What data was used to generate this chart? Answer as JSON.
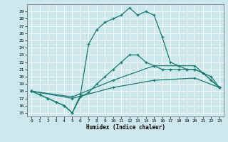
{
  "xlabel": "Humidex (Indice chaleur)",
  "xlim": [
    -0.5,
    23.5
  ],
  "ylim": [
    14.5,
    30.0
  ],
  "xticks": [
    0,
    1,
    2,
    3,
    4,
    5,
    6,
    7,
    8,
    9,
    10,
    11,
    12,
    13,
    14,
    15,
    16,
    17,
    18,
    19,
    20,
    21,
    22,
    23
  ],
  "yticks": [
    15,
    16,
    17,
    18,
    19,
    20,
    21,
    22,
    23,
    24,
    25,
    26,
    27,
    28,
    29
  ],
  "bg_color": "#cce8ec",
  "grid_color": "#b0d8dc",
  "line_color": "#1a7a6e",
  "curve_peak": {
    "x": [
      0,
      1,
      2,
      3,
      4,
      5,
      6,
      7,
      8,
      9,
      10,
      11,
      12,
      13,
      14,
      15,
      16,
      17,
      18,
      19,
      20,
      21,
      22,
      23
    ],
    "y": [
      18,
      17.5,
      17,
      16.5,
      16,
      15,
      17.5,
      24.5,
      26.5,
      27.5,
      28,
      28.5,
      29.5,
      28.5,
      29,
      28.5,
      25.5,
      22,
      21.5,
      21,
      21,
      20.5,
      20,
      18.5
    ]
  },
  "curve_mid": {
    "x": [
      0,
      1,
      2,
      3,
      4,
      5,
      6,
      7,
      8,
      9,
      10,
      11,
      12,
      13,
      14,
      15,
      16,
      17,
      18,
      19,
      20,
      21,
      22,
      23
    ],
    "y": [
      18,
      17.5,
      17,
      16.5,
      16,
      15,
      17.2,
      17.8,
      19,
      20,
      21,
      22,
      23,
      23,
      22,
      21.5,
      21,
      21,
      21,
      21,
      21,
      20.5,
      19.5,
      18.5
    ]
  },
  "line_upper": {
    "x": [
      0,
      5,
      10,
      15,
      20,
      23
    ],
    "y": [
      18,
      17.2,
      19.5,
      21.5,
      21.5,
      18.5
    ]
  },
  "line_lower": {
    "x": [
      0,
      5,
      10,
      15,
      20,
      23
    ],
    "y": [
      18,
      17.0,
      18.5,
      19.5,
      19.8,
      18.5
    ]
  }
}
